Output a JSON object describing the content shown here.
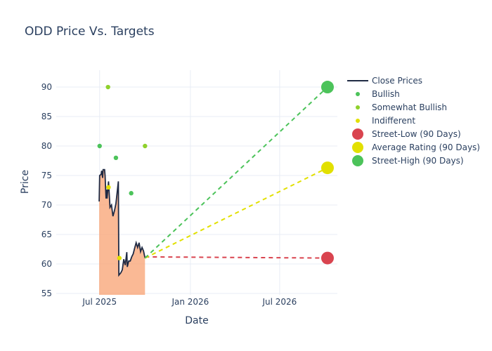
{
  "chart_data": {
    "type": "line",
    "title": "ODD Price Vs. Targets",
    "xlabel": "Date",
    "ylabel": "Price",
    "xlim": [
      "2025-04-04",
      "2026-10-26"
    ],
    "ylim": [
      54.76,
      92.86
    ],
    "x_ticks": [
      {
        "date": "2025-07-01",
        "label": "Jul 2025"
      },
      {
        "date": "2026-01-01",
        "label": "Jan 2026"
      },
      {
        "date": "2026-07-01",
        "label": "Jul 2026"
      }
    ],
    "y_ticks": [
      55,
      60,
      65,
      70,
      75,
      80,
      85,
      90
    ],
    "grid": true,
    "legend_position": "top-right",
    "colors": {
      "close": "#1f2a44",
      "fill": "#f9a77a",
      "bullish": "#4cc35a",
      "somewhat_bullish": "#8fd12c",
      "indifferent": "#e2e000",
      "street_low": "#d9444f",
      "street_high": "#4cc35a"
    },
    "close_prices": {
      "name": "Close Prices",
      "points": [
        [
          "2025-06-30",
          70.6
        ],
        [
          "2025-07-01",
          75.0
        ],
        [
          "2025-07-04",
          75.2
        ],
        [
          "2025-07-05",
          75.8
        ],
        [
          "2025-07-07",
          74.6
        ],
        [
          "2025-07-08",
          76.0
        ],
        [
          "2025-07-11",
          76.0
        ],
        [
          "2025-07-12",
          75.0
        ],
        [
          "2025-07-14",
          71.1
        ],
        [
          "2025-07-15",
          72.6
        ],
        [
          "2025-07-16",
          71.1
        ],
        [
          "2025-07-19",
          74.0
        ],
        [
          "2025-07-22",
          69.6
        ],
        [
          "2025-07-25",
          70.0
        ],
        [
          "2025-07-28",
          68.1
        ],
        [
          "2025-07-31",
          69.0
        ],
        [
          "2025-08-03",
          70.2
        ],
        [
          "2025-08-08",
          74.0
        ],
        [
          "2025-08-09",
          58.1
        ],
        [
          "2025-08-13",
          58.5
        ],
        [
          "2025-08-16",
          59.0
        ],
        [
          "2025-08-19",
          60.8
        ],
        [
          "2025-08-22",
          59.8
        ],
        [
          "2025-08-25",
          62.0
        ],
        [
          "2025-08-26",
          59.5
        ],
        [
          "2025-08-29",
          60.5
        ],
        [
          "2025-09-01",
          60.5
        ],
        [
          "2025-09-04",
          61.2
        ],
        [
          "2025-09-07",
          61.7
        ],
        [
          "2025-09-10",
          62.7
        ],
        [
          "2025-09-13",
          63.6
        ],
        [
          "2025-09-16",
          62.8
        ],
        [
          "2025-09-19",
          63.6
        ],
        [
          "2025-09-22",
          62.1
        ],
        [
          "2025-09-25",
          62.8
        ],
        [
          "2025-09-28",
          62.2
        ],
        [
          "2025-10-01",
          61.0
        ]
      ]
    },
    "ratings": [
      {
        "name": "Bullish",
        "points": [
          [
            "2025-07-01",
            80
          ],
          [
            "2025-08-03",
            78
          ],
          [
            "2025-09-03",
            72
          ]
        ]
      },
      {
        "name": "Somewhat Bullish",
        "points": [
          [
            "2025-07-18",
            90
          ],
          [
            "2025-10-01",
            80
          ]
        ]
      },
      {
        "name": "Indifferent",
        "points": [
          [
            "2025-07-19",
            73
          ],
          [
            "2025-08-10",
            61
          ]
        ]
      }
    ],
    "targets": [
      {
        "name": "Street-Low (90 Days)",
        "start": [
          "2025-10-01",
          61.2
        ],
        "end": [
          "2026-10-06",
          61.0
        ]
      },
      {
        "name": "Average Rating (90 Days)",
        "start": [
          "2025-10-01",
          61.0
        ],
        "end": [
          "2026-10-06",
          76.3
        ]
      },
      {
        "name": "Street-High (90 Days)",
        "start": [
          "2025-10-01",
          61.0
        ],
        "end": [
          "2026-10-06",
          90.0
        ]
      }
    ]
  }
}
